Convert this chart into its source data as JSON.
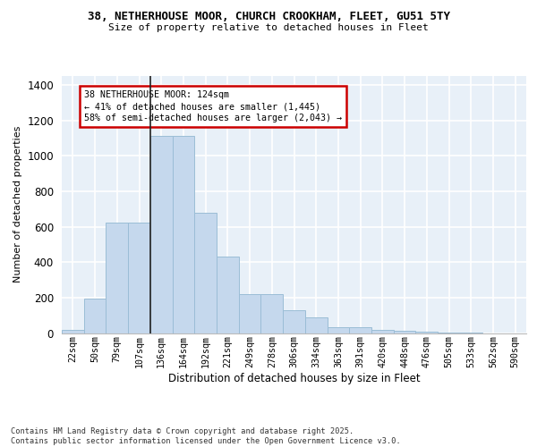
{
  "title_line1": "38, NETHERHOUSE MOOR, CHURCH CROOKHAM, FLEET, GU51 5TY",
  "title_line2": "Size of property relative to detached houses in Fleet",
  "xlabel": "Distribution of detached houses by size in Fleet",
  "ylabel": "Number of detached properties",
  "categories": [
    "22sqm",
    "50sqm",
    "79sqm",
    "107sqm",
    "136sqm",
    "164sqm",
    "192sqm",
    "221sqm",
    "249sqm",
    "278sqm",
    "306sqm",
    "334sqm",
    "363sqm",
    "391sqm",
    "420sqm",
    "448sqm",
    "476sqm",
    "505sqm",
    "533sqm",
    "562sqm",
    "590sqm"
  ],
  "values": [
    20,
    195,
    625,
    625,
    1110,
    1110,
    680,
    430,
    220,
    220,
    130,
    90,
    35,
    35,
    20,
    12,
    8,
    5,
    2,
    0,
    0
  ],
  "bar_color": "#c5d8ed",
  "bar_edge_color": "#9bbdd6",
  "background_color": "#e8f0f8",
  "grid_color": "#ffffff",
  "vline_color": "#222222",
  "annotation_text": "38 NETHERHOUSE MOOR: 124sqm\n← 41% of detached houses are smaller (1,445)\n58% of semi-detached houses are larger (2,043) →",
  "annotation_box_edgecolor": "#cc0000",
  "footnote": "Contains HM Land Registry data © Crown copyright and database right 2025.\nContains public sector information licensed under the Open Government Licence v3.0.",
  "ylim": [
    0,
    1450
  ],
  "yticks": [
    0,
    200,
    400,
    600,
    800,
    1000,
    1200,
    1400
  ]
}
